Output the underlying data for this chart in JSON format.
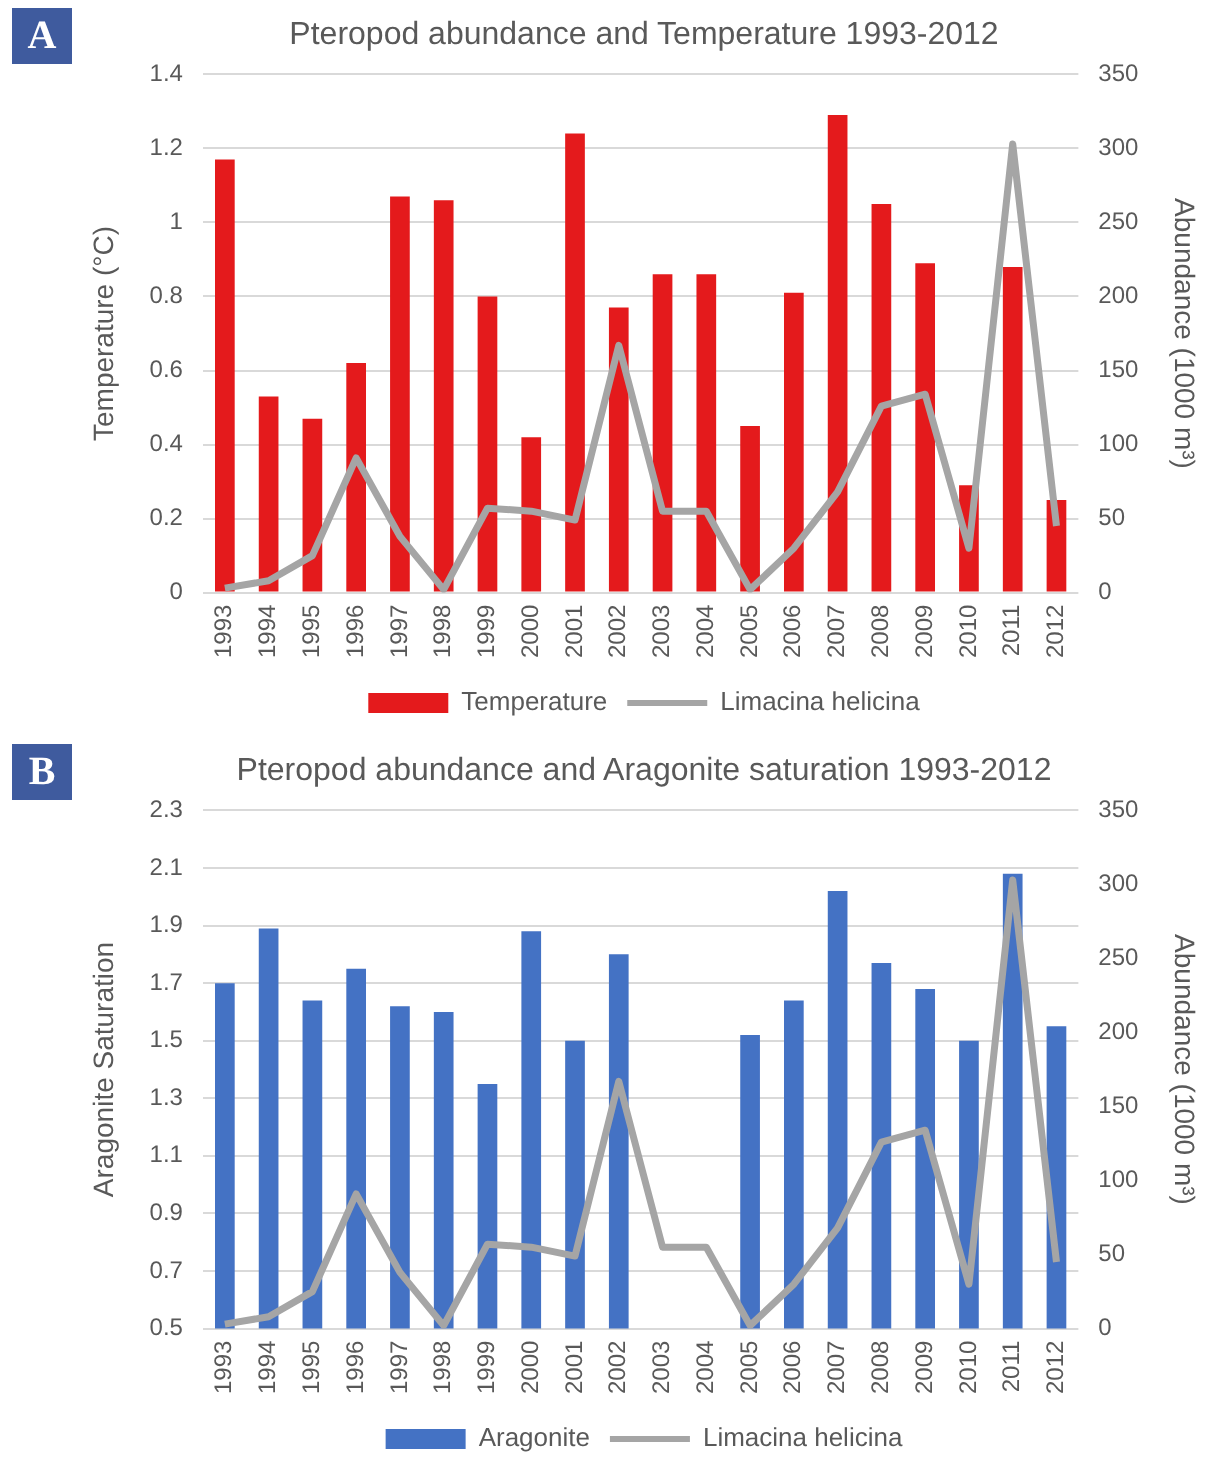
{
  "chart_data": [
    {
      "type": "bar",
      "title": "Pteropod abundance and Temperature 1993-2012",
      "ylabel": "Temperature (°C)",
      "y2label": "Abundance (1000 m³)",
      "annotations": [
        "A"
      ],
      "categories": [
        "1993",
        "1994",
        "1995",
        "1996",
        "1997",
        "1998",
        "1999",
        "2000",
        "2001",
        "2002",
        "2003",
        "2004",
        "2005",
        "2006",
        "2007",
        "2008",
        "2009",
        "2010",
        "2011",
        "2012"
      ],
      "series": [
        {
          "name": "Temperature",
          "color": "#e41a1c",
          "values": [
            1.17,
            0.53,
            0.47,
            0.62,
            1.07,
            1.06,
            0.8,
            0.42,
            1.24,
            0.77,
            0.86,
            0.86,
            0.45,
            0.81,
            1.29,
            1.05,
            0.89,
            0.29,
            0.88,
            0.25
          ]
        },
        {
          "name": "Limacina helicina",
          "type": "line",
          "axis": "y2",
          "color": "#a5a5a5",
          "values": [
            3,
            8,
            25,
            91,
            38,
            2,
            57,
            55,
            49,
            167,
            55,
            55,
            2,
            30,
            68,
            126,
            134,
            30,
            303,
            45
          ]
        }
      ],
      "ylim": [
        0,
        1.4
      ],
      "yticks": [
        0,
        0.2,
        0.4,
        0.6,
        0.8,
        1,
        1.2,
        1.4
      ],
      "y2lim": [
        0,
        350
      ],
      "y2ticks": [
        0,
        50,
        100,
        150,
        200,
        250,
        300,
        350
      ],
      "grid": "y",
      "legend": "bottom",
      "marker": "none",
      "line_style": "solid"
    },
    {
      "type": "bar",
      "title": "Pteropod abundance and Aragonite saturation 1993-2012",
      "ylabel": "Aragonite Saturation",
      "y2label": "Abundance (1000 m³)",
      "annotations": [
        "B"
      ],
      "categories": [
        "1993",
        "1994",
        "1995",
        "1996",
        "1997",
        "1998",
        "1999",
        "2000",
        "2001",
        "2002",
        "2003",
        "2004",
        "2005",
        "2006",
        "2007",
        "2008",
        "2009",
        "2010",
        "2011",
        "2012"
      ],
      "series": [
        {
          "name": "Aragonite",
          "color": "#4472c4",
          "values": [
            1.7,
            1.89,
            1.64,
            1.75,
            1.62,
            1.6,
            1.35,
            1.88,
            1.5,
            1.8,
            null,
            null,
            1.52,
            1.64,
            2.02,
            1.77,
            1.68,
            1.5,
            2.08,
            1.55
          ]
        },
        {
          "name": "Limacina helicina",
          "type": "line",
          "axis": "y2",
          "color": "#a5a5a5",
          "values": [
            3,
            8,
            25,
            91,
            38,
            2,
            57,
            55,
            49,
            167,
            55,
            55,
            2,
            30,
            68,
            126,
            134,
            30,
            303,
            45
          ]
        }
      ],
      "ylim": [
        0.5,
        2.3
      ],
      "yticks": [
        0.5,
        0.7,
        0.9,
        1.1,
        1.3,
        1.5,
        1.7,
        1.9,
        2.1,
        2.3
      ],
      "y2lim": [
        0,
        350
      ],
      "y2ticks": [
        0,
        50,
        100,
        150,
        200,
        250,
        300,
        350
      ],
      "grid": "y",
      "legend": "bottom",
      "marker": "none",
      "line_style": "solid"
    }
  ]
}
